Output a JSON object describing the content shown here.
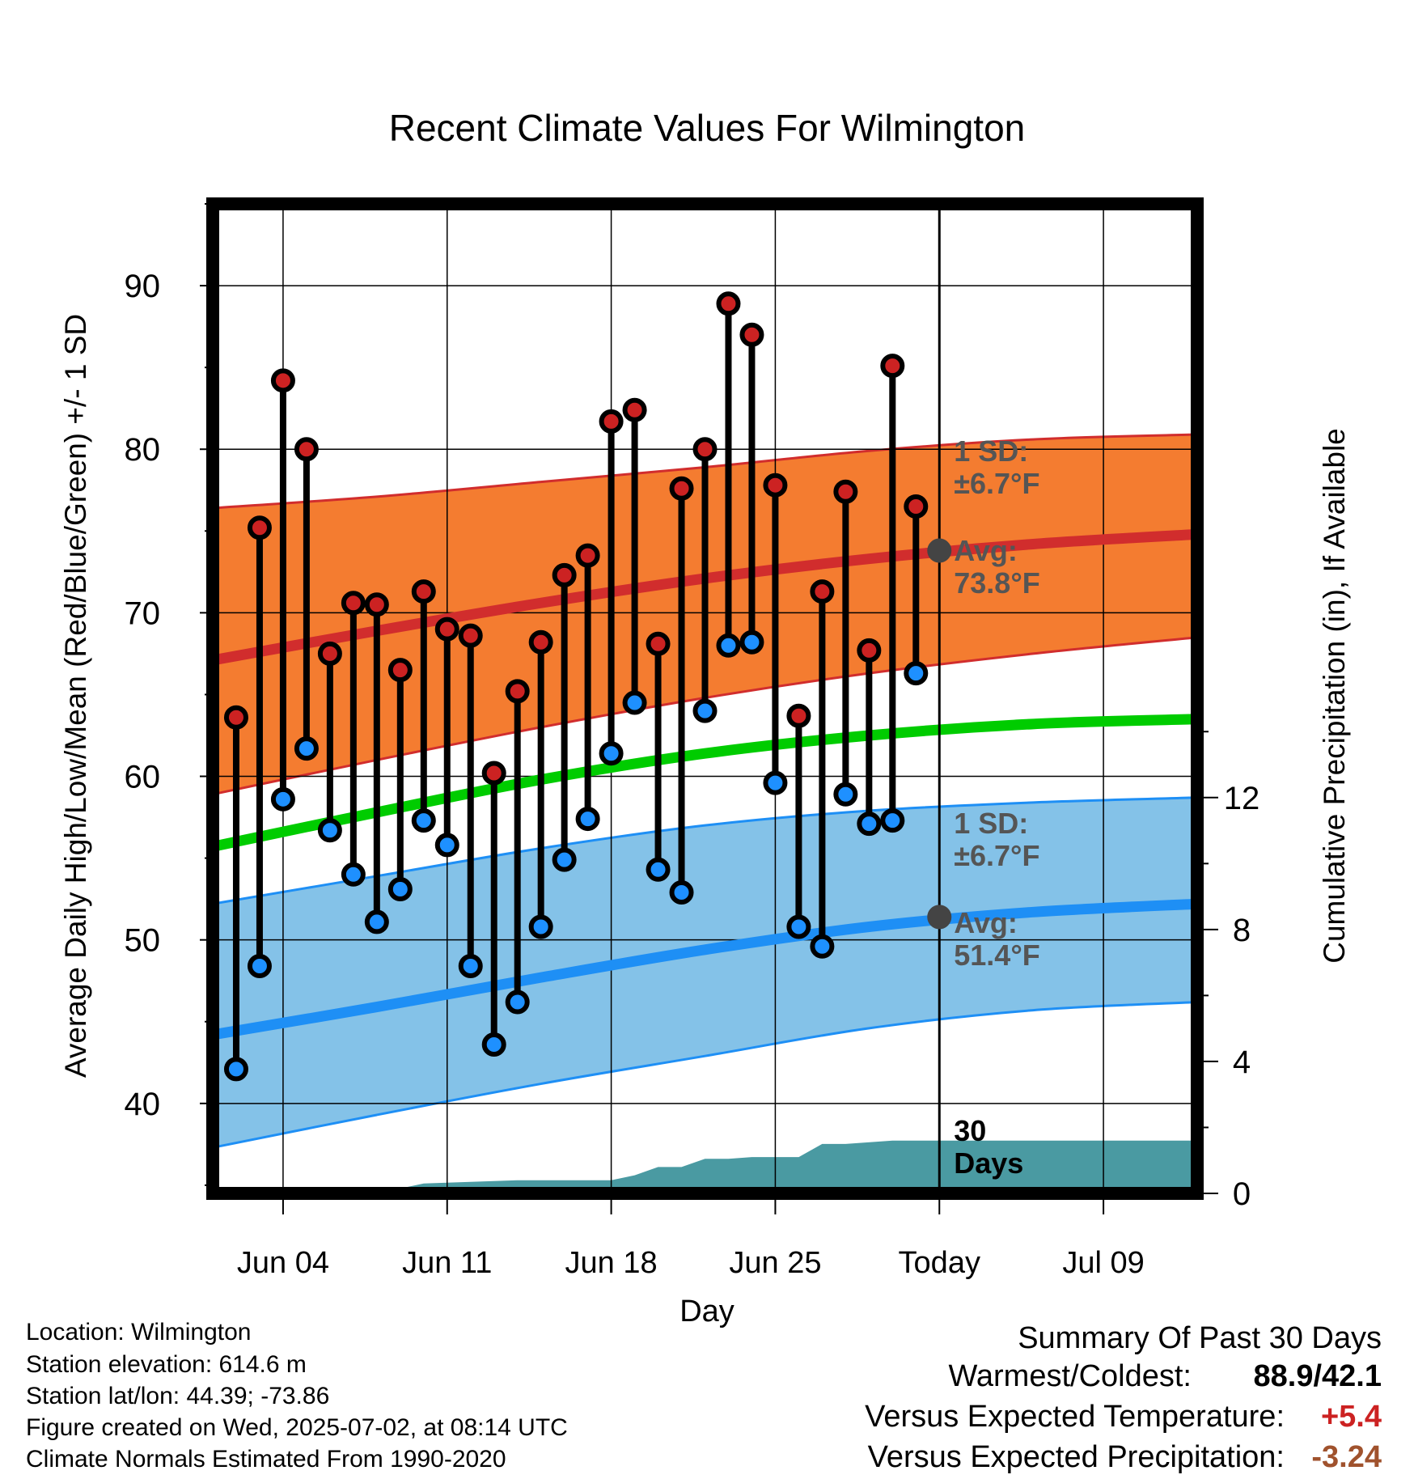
{
  "chart_data": {
    "type": "line",
    "title": "Recent Climate Values For Wilmington",
    "xlabel": "Day",
    "ylabel": "Average Daily High/Low/Mean (Red/Blue/Green) +/- 1 SD",
    "y2label": "Cumulative Precipitation (in), If Available",
    "x_range": [
      "2025-06-01",
      "2025-07-13"
    ],
    "ylim": [
      34.5,
      95
    ],
    "y2lim": [
      0,
      30
    ],
    "x_ticks": [
      {
        "date": "2025-06-04",
        "label": "Jun 04"
      },
      {
        "date": "2025-06-11",
        "label": "Jun 11"
      },
      {
        "date": "2025-06-18",
        "label": "Jun 18"
      },
      {
        "date": "2025-06-25",
        "label": "Jun 25"
      },
      {
        "date": "2025-07-02",
        "label": "Today"
      },
      {
        "date": "2025-07-09",
        "label": "Jul 09"
      }
    ],
    "y_ticks": [
      40,
      50,
      60,
      70,
      80,
      90
    ],
    "y2_ticks": [
      0,
      4,
      8,
      12
    ],
    "grid": true,
    "today": "2025-07-02",
    "daily": {
      "dates": [
        "2025-06-02",
        "2025-06-03",
        "2025-06-04",
        "2025-06-05",
        "2025-06-06",
        "2025-06-07",
        "2025-06-08",
        "2025-06-09",
        "2025-06-10",
        "2025-06-11",
        "2025-06-12",
        "2025-06-13",
        "2025-06-14",
        "2025-06-15",
        "2025-06-16",
        "2025-06-17",
        "2025-06-18",
        "2025-06-19",
        "2025-06-20",
        "2025-06-21",
        "2025-06-22",
        "2025-06-23",
        "2025-06-24",
        "2025-06-25",
        "2025-06-26",
        "2025-06-27",
        "2025-06-28",
        "2025-06-29",
        "2025-06-30",
        "2025-07-01"
      ],
      "highs": [
        63.6,
        75.2,
        84.2,
        80.0,
        67.5,
        70.6,
        70.5,
        66.5,
        71.3,
        69.0,
        68.6,
        60.2,
        65.2,
        68.2,
        72.3,
        73.5,
        81.7,
        82.4,
        68.1,
        77.6,
        80.0,
        88.9,
        87.0,
        77.8,
        63.7,
        71.3,
        77.4,
        67.7,
        85.1,
        76.5
      ],
      "lows": [
        42.1,
        48.4,
        58.6,
        61.7,
        56.7,
        54.0,
        51.1,
        53.1,
        57.3,
        55.8,
        48.4,
        43.6,
        46.2,
        50.8,
        54.9,
        57.4,
        61.4,
        64.5,
        54.3,
        52.9,
        64.0,
        68.0,
        68.2,
        59.6,
        50.8,
        49.6,
        58.9,
        57.1,
        57.3,
        66.3
      ]
    },
    "normals": {
      "dates": [
        "2025-06-01",
        "2025-06-08",
        "2025-06-15",
        "2025-06-22",
        "2025-06-29",
        "2025-07-06",
        "2025-07-13"
      ],
      "high_mean": [
        67.1,
        68.9,
        70.6,
        72.1,
        73.3,
        74.2,
        74.8
      ],
      "high_upper": [
        76.4,
        77.1,
        78.0,
        78.9,
        79.9,
        80.6,
        80.9
      ],
      "high_lower": [
        58.9,
        61.0,
        63.0,
        64.8,
        66.3,
        67.5,
        68.5
      ],
      "mean": [
        55.7,
        57.8,
        59.8,
        61.4,
        62.5,
        63.2,
        63.5
      ],
      "low_mean": [
        44.2,
        45.9,
        47.7,
        49.4,
        50.8,
        51.7,
        52.2
      ],
      "low_upper": [
        52.2,
        53.9,
        55.6,
        57.0,
        57.9,
        58.4,
        58.7
      ],
      "low_lower": [
        37.3,
        39.3,
        41.2,
        42.9,
        44.6,
        45.7,
        46.2
      ]
    },
    "precip_cumulative": {
      "dates": [
        "2025-06-01",
        "2025-06-05",
        "2025-06-06",
        "2025-06-08",
        "2025-06-09",
        "2025-06-10",
        "2025-06-12",
        "2025-06-14",
        "2025-06-18",
        "2025-06-19",
        "2025-06-20",
        "2025-06-21",
        "2025-06-22",
        "2025-06-23",
        "2025-06-24",
        "2025-06-26",
        "2025-06-27",
        "2025-06-28",
        "2025-06-30",
        "2025-07-01",
        "2025-07-13"
      ],
      "values": [
        0,
        0,
        0.05,
        0.05,
        0.15,
        0.3,
        0.35,
        0.4,
        0.4,
        0.55,
        0.8,
        0.8,
        1.05,
        1.05,
        1.1,
        1.1,
        1.5,
        1.5,
        1.6,
        1.6,
        1.6
      ]
    },
    "annotations": {
      "high_sd": [
        "1 SD:",
        "±6.7°F"
      ],
      "high_avg": [
        "Avg:",
        "73.8°F"
      ],
      "low_sd": [
        "1 SD:",
        "±6.7°F"
      ],
      "low_avg": [
        "Avg:",
        "51.4°F"
      ],
      "period": [
        "30",
        "Days"
      ]
    },
    "today_high_avg": 73.8,
    "today_low_avg": 51.4,
    "colors": {
      "high_band": "#f47c30",
      "high_line": "#d12d2d",
      "low_band": "#84c2e8",
      "low_line": "#1e8ff5",
      "mean_line": "#00cc00",
      "precip": "#4a9aa2",
      "high_dot": "#cc2222",
      "low_dot": "#1e90ff",
      "annot": "#555555"
    }
  },
  "info": {
    "location": "Location: Wilmington",
    "elevation": "Station elevation: 614.6 m",
    "latlon": "Station lat/lon: 44.39; -73.86",
    "created": "Figure created on Wed, 2025-07-02, at 08:14 UTC",
    "normals": "Climate Normals Estimated From 1990-2020"
  },
  "summary": {
    "title": "Summary Of Past 30 Days",
    "warmest_label": "Warmest/Coldest:",
    "warmest_value": "88.9/42.1",
    "temp_label": "Versus Expected Temperature:",
    "temp_value": "+5.4",
    "temp_color": "#cc2222",
    "precip_label": "Versus Expected Precipitation:",
    "precip_value": "-3.24",
    "precip_color": "#a0522d"
  }
}
